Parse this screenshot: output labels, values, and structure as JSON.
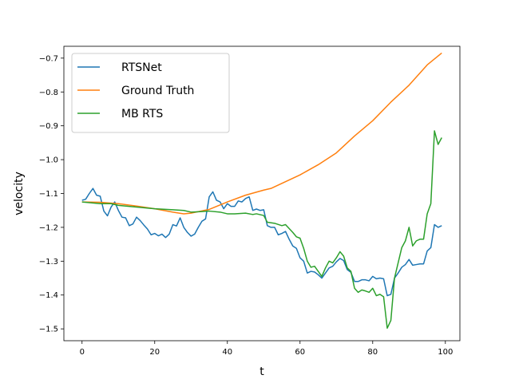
{
  "chart_data": {
    "type": "line",
    "title": "",
    "xlabel": "t",
    "ylabel": "velocity",
    "xlim": [
      -5,
      104
    ],
    "ylim": [
      -1.535,
      -0.665
    ],
    "x_ticks": [
      0,
      20,
      40,
      60,
      80,
      100
    ],
    "y_ticks": [
      -1.5,
      -1.4,
      -1.3,
      -1.2,
      -1.1,
      -1.0,
      -0.9,
      -0.8,
      -0.7
    ],
    "x_tick_labels": [
      "0",
      "20",
      "40",
      "60",
      "80",
      "100"
    ],
    "y_tick_labels": [
      "−1.5",
      "−1.4",
      "−1.3",
      "−1.2",
      "−1.1",
      "−1.0",
      "−0.9",
      "−0.8",
      "−0.7"
    ],
    "legend_position": "upper-left",
    "grid": false,
    "series": [
      {
        "name": "RTSNet",
        "color": "#1f77b4",
        "x": [
          0,
          1,
          2,
          3,
          4,
          5,
          6,
          7,
          8,
          9,
          10,
          11,
          12,
          13,
          14,
          15,
          16,
          17,
          18,
          19,
          20,
          21,
          22,
          23,
          24,
          25,
          26,
          27,
          28,
          29,
          30,
          31,
          32,
          33,
          34,
          35,
          36,
          37,
          38,
          39,
          40,
          41,
          42,
          43,
          44,
          45,
          46,
          47,
          48,
          49,
          50,
          51,
          52,
          53,
          54,
          55,
          56,
          57,
          58,
          59,
          60,
          61,
          62,
          63,
          64,
          65,
          66,
          67,
          68,
          69,
          70,
          71,
          72,
          73,
          74,
          75,
          76,
          77,
          78,
          79,
          80,
          81,
          82,
          83,
          84,
          85,
          86,
          87,
          88,
          89,
          90,
          91,
          92,
          93,
          94,
          95,
          96,
          97,
          98,
          99
        ],
        "y": [
          -1.12,
          -1.117,
          -1.1,
          -1.085,
          -1.105,
          -1.108,
          -1.152,
          -1.166,
          -1.14,
          -1.125,
          -1.15,
          -1.17,
          -1.172,
          -1.195,
          -1.19,
          -1.17,
          -1.18,
          -1.193,
          -1.205,
          -1.222,
          -1.218,
          -1.225,
          -1.22,
          -1.23,
          -1.22,
          -1.192,
          -1.196,
          -1.172,
          -1.2,
          -1.215,
          -1.226,
          -1.22,
          -1.2,
          -1.182,
          -1.175,
          -1.11,
          -1.095,
          -1.12,
          -1.125,
          -1.145,
          -1.13,
          -1.138,
          -1.138,
          -1.122,
          -1.125,
          -1.115,
          -1.11,
          -1.15,
          -1.146,
          -1.15,
          -1.148,
          -1.195,
          -1.2,
          -1.2,
          -1.222,
          -1.218,
          -1.212,
          -1.235,
          -1.255,
          -1.262,
          -1.29,
          -1.3,
          -1.335,
          -1.33,
          -1.332,
          -1.34,
          -1.35,
          -1.335,
          -1.32,
          -1.315,
          -1.302,
          -1.292,
          -1.298,
          -1.325,
          -1.333,
          -1.36,
          -1.36,
          -1.355,
          -1.355,
          -1.358,
          -1.345,
          -1.352,
          -1.35,
          -1.352,
          -1.402,
          -1.398,
          -1.35,
          -1.335,
          -1.318,
          -1.31,
          -1.295,
          -1.312,
          -1.31,
          -1.308,
          -1.308,
          -1.27,
          -1.26,
          -1.192,
          -1.2,
          -1.195
        ]
      },
      {
        "name": "Ground Truth",
        "color": "#ff7f0e",
        "x": [
          0,
          5,
          10,
          15,
          20,
          25,
          28,
          30,
          35,
          40,
          45,
          50,
          52,
          55,
          60,
          65,
          70,
          75,
          80,
          85,
          90,
          95,
          99
        ],
        "y": [
          -1.125,
          -1.126,
          -1.13,
          -1.137,
          -1.145,
          -1.155,
          -1.16,
          -1.158,
          -1.147,
          -1.125,
          -1.105,
          -1.09,
          -1.085,
          -1.07,
          -1.045,
          -1.015,
          -0.98,
          -0.93,
          -0.885,
          -0.83,
          -0.78,
          -0.72,
          -0.685
        ]
      },
      {
        "name": "MB RTS",
        "color": "#2ca02c",
        "x": [
          0,
          5,
          8,
          10,
          15,
          20,
          25,
          28,
          30,
          35,
          38,
          40,
          42,
          45,
          47,
          48,
          50,
          51,
          53,
          55,
          56,
          58,
          59,
          60,
          61,
          62,
          63,
          64,
          65,
          66,
          67,
          68,
          69,
          70,
          71,
          72,
          73,
          74,
          75,
          76,
          77,
          78,
          79,
          80,
          81,
          82,
          83,
          84,
          85,
          86,
          87,
          88,
          89,
          90,
          91,
          92,
          93,
          94,
          95,
          96,
          97,
          98,
          99
        ],
        "y": [
          -1.125,
          -1.13,
          -1.13,
          -1.135,
          -1.14,
          -1.145,
          -1.148,
          -1.15,
          -1.155,
          -1.152,
          -1.155,
          -1.16,
          -1.16,
          -1.158,
          -1.162,
          -1.16,
          -1.165,
          -1.185,
          -1.188,
          -1.195,
          -1.192,
          -1.215,
          -1.228,
          -1.232,
          -1.262,
          -1.3,
          -1.318,
          -1.315,
          -1.33,
          -1.345,
          -1.32,
          -1.3,
          -1.305,
          -1.29,
          -1.272,
          -1.285,
          -1.32,
          -1.33,
          -1.38,
          -1.392,
          -1.385,
          -1.388,
          -1.392,
          -1.38,
          -1.402,
          -1.398,
          -1.405,
          -1.498,
          -1.475,
          -1.35,
          -1.305,
          -1.26,
          -1.24,
          -1.2,
          -1.255,
          -1.24,
          -1.235,
          -1.235,
          -1.16,
          -1.13,
          -0.915,
          -0.955,
          -0.935
        ]
      }
    ]
  }
}
